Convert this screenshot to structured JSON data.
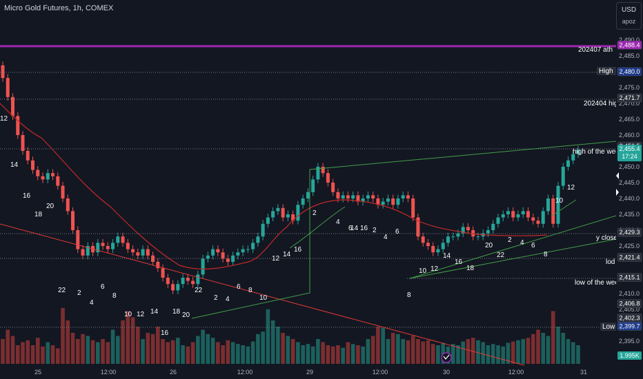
{
  "header": {
    "title": "Micro Gold Futures, 1h, COMEX"
  },
  "scale_box": {
    "currency": "USD",
    "mode": "apoz"
  },
  "colors": {
    "bull": "#26a69a",
    "bear": "#ef5350",
    "ath_line": "#9c27b0",
    "ma": "#e53935",
    "trend": "#43a047",
    "tags": "#363a45"
  },
  "price_axis": {
    "ticks": [
      "2,490.0",
      "2,485.0",
      "2,475.0",
      "2,470.0",
      "2,465.0",
      "2,460.0",
      "2,450.0",
      "2,445.0",
      "2,440.0",
      "2,435.0",
      "2,430.0",
      "2,425.0",
      "2,410.0",
      "2,405.0",
      "2,395.0"
    ]
  },
  "time_axis": {
    "ticks": [
      "25",
      "12:00",
      "26",
      "12:00",
      "29",
      "12:00",
      "30",
      "12:00",
      "31"
    ]
  },
  "levels": [
    {
      "name": "202407 ath",
      "price": "2,488.4",
      "tag": "ath"
    },
    {
      "name": "High",
      "price": "2,480.0",
      "tag": "dark"
    },
    {
      "name": "202404 high",
      "price": "2,471.7",
      "tag": "light"
    },
    {
      "name": "high of the week",
      "price": "2,456.5",
      "tag": "light"
    },
    {
      "name": "y close",
      "price": "2,429.3",
      "tag": "light"
    },
    {
      "name": "lod",
      "price": "2,421.4",
      "tag": "light"
    },
    {
      "name": "low of the week",
      "price": "2,415.1",
      "tag": "light"
    },
    {
      "name": "Low",
      "price": "2,399.7",
      "tag": "dark"
    }
  ],
  "extra_tags": [
    {
      "price": "2,406.8",
      "tag": "light"
    },
    {
      "price": "2,402.3",
      "tag": "light"
    }
  ],
  "current_price": {
    "value": "2,455.4",
    "countdown": "17:24"
  },
  "volume_tag": "1.995K",
  "count_labels": [
    "12",
    "14",
    "16",
    "18",
    "20",
    "22",
    "2",
    "4",
    "6",
    "8",
    "10",
    "12",
    "14",
    "16",
    "18",
    "20",
    "22",
    "2",
    "4",
    "6",
    "8",
    "10",
    "12",
    "14",
    "16",
    "2",
    "4",
    "6",
    "2",
    "4",
    "6",
    "8",
    "10",
    "12",
    "14",
    "16",
    "18",
    "20",
    "22",
    "2",
    "4",
    "6",
    "8",
    "10",
    "12",
    "14",
    "16"
  ]
}
